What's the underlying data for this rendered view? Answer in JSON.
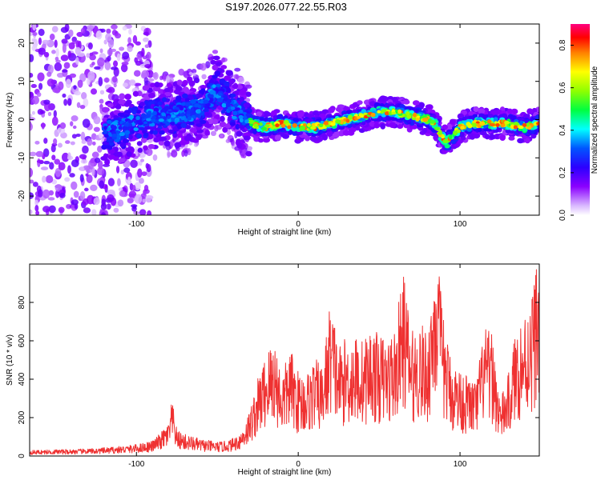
{
  "title": "S197.2026.077.22.55.R03",
  "chart_data": [
    {
      "type": "heatmap",
      "xlabel": "Height of straight line (km)",
      "ylabel": "Frequency (Hz)",
      "xlim": [
        -166,
        149
      ],
      "ylim": [
        -25,
        25
      ],
      "x_ticks": [
        -100,
        0,
        100
      ],
      "y_ticks": [
        -20,
        -10,
        0,
        10,
        20
      ],
      "colorbar": {
        "label": "Normalized spectral amplitude",
        "range": [
          0,
          0.9
        ],
        "ticks": [
          0,
          0.2,
          0.4,
          0.6,
          0.8
        ]
      },
      "ridge_frequency": {
        "x": [
          -110,
          -100,
          -90,
          -80,
          -70,
          -60,
          -50,
          -40,
          -30,
          -20,
          -10,
          0,
          10,
          20,
          30,
          40,
          50,
          60,
          70,
          80,
          85,
          88,
          92,
          100,
          110,
          120,
          130,
          140,
          149
        ],
        "y": [
          -3,
          -1,
          1,
          1,
          2,
          3,
          8,
          3,
          -1,
          -2,
          -1,
          -2,
          -2,
          -1,
          0,
          1,
          2,
          2,
          1,
          0,
          -1,
          -4,
          -6,
          -2,
          -1,
          -1,
          -1,
          -2,
          -1
        ]
      },
      "high_amplitude_x_range": [
        -30,
        149
      ]
    },
    {
      "type": "line",
      "xlabel": "Height of straight line (km)",
      "ylabel": "SNR (10 * v/v)",
      "xlim": [
        -166,
        149
      ],
      "ylim": [
        0,
        1000
      ],
      "x_ticks": [
        -100,
        0,
        100
      ],
      "y_ticks": [
        0,
        200,
        400,
        600,
        800
      ],
      "color": "#ef3131",
      "series": [
        {
          "name": "SNR",
          "x": [
            -166,
            -150,
            -140,
            -130,
            -120,
            -110,
            -100,
            -90,
            -85,
            -80,
            -78,
            -75,
            -70,
            -60,
            -50,
            -45,
            -40,
            -35,
            -30,
            -25,
            -20,
            -15,
            -10,
            -5,
            0,
            5,
            10,
            15,
            20,
            25,
            30,
            35,
            40,
            45,
            50,
            55,
            60,
            65,
            70,
            75,
            80,
            85,
            90,
            95,
            100,
            105,
            110,
            115,
            120,
            125,
            130,
            135,
            140,
            145,
            149
          ],
          "y": [
            22,
            25,
            26,
            28,
            32,
            38,
            45,
            60,
            90,
            130,
            220,
            100,
            85,
            65,
            55,
            58,
            70,
            100,
            180,
            300,
            400,
            470,
            320,
            420,
            330,
            320,
            380,
            350,
            620,
            430,
            460,
            470,
            450,
            500,
            470,
            460,
            500,
            720,
            480,
            520,
            480,
            850,
            520,
            370,
            340,
            310,
            290,
            500,
            470,
            220,
            320,
            510,
            560,
            660,
            850
          ]
        }
      ]
    }
  ]
}
